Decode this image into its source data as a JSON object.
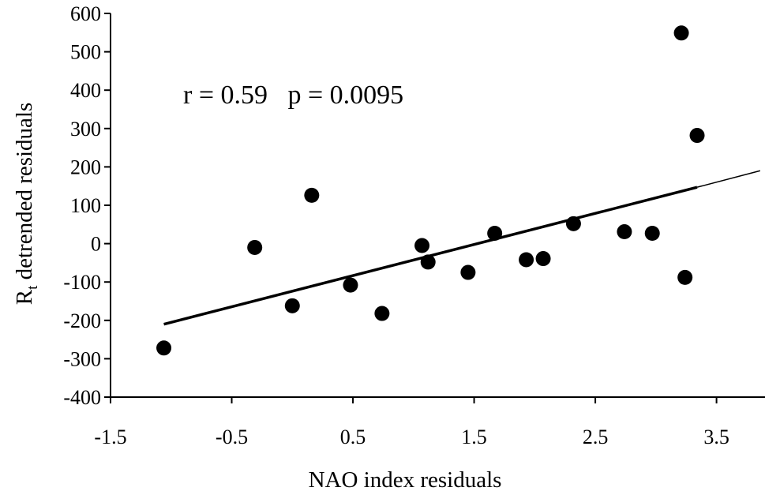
{
  "chart_data": {
    "type": "scatter",
    "title": "",
    "xlabel": "NAO index residuals",
    "ylabel_main": "R",
    "ylabel_sub": "t",
    "ylabel_rest": " detrended residuals",
    "xlim": [
      -1.5,
      3.9
    ],
    "ylim": [
      -400,
      600
    ],
    "x_ticks": [
      -1.5,
      -0.5,
      0.5,
      1.5,
      2.5,
      3.5
    ],
    "x_tick_labels": [
      "-1.5",
      "-0.5",
      "0.5",
      "1.5",
      "2.5",
      "3.5"
    ],
    "y_ticks": [
      -400,
      -300,
      -200,
      -100,
      0,
      100,
      200,
      300,
      400,
      500,
      600
    ],
    "y_tick_labels": [
      "-400",
      "-300",
      "-200",
      "-100",
      "0",
      "100",
      "200",
      "300",
      "400",
      "500",
      "600"
    ],
    "annotation": "r = 0.59   p = 0.0095",
    "points": [
      {
        "x": -1.06,
        "y": -272
      },
      {
        "x": -0.31,
        "y": -10
      },
      {
        "x": 0.0,
        "y": -162
      },
      {
        "x": 0.16,
        "y": 126
      },
      {
        "x": 0.48,
        "y": -108
      },
      {
        "x": 0.74,
        "y": -182
      },
      {
        "x": 1.07,
        "y": -5
      },
      {
        "x": 1.12,
        "y": -48
      },
      {
        "x": 1.45,
        "y": -75
      },
      {
        "x": 1.67,
        "y": 27
      },
      {
        "x": 1.93,
        "y": -42
      },
      {
        "x": 2.07,
        "y": -39
      },
      {
        "x": 2.32,
        "y": 52
      },
      {
        "x": 2.74,
        "y": 31
      },
      {
        "x": 2.97,
        "y": 27
      },
      {
        "x": 3.21,
        "y": 549
      },
      {
        "x": 3.24,
        "y": -88
      },
      {
        "x": 3.34,
        "y": 282
      }
    ],
    "fit_line": {
      "x": [
        -1.06,
        3.34
      ],
      "y": [
        -210,
        147
      ]
    },
    "thin_line": {
      "x": [
        3.34,
        3.86
      ],
      "y": [
        147,
        190
      ]
    },
    "marker_color": "#000000",
    "line_color": "#000000",
    "grid": false,
    "legend": false
  }
}
